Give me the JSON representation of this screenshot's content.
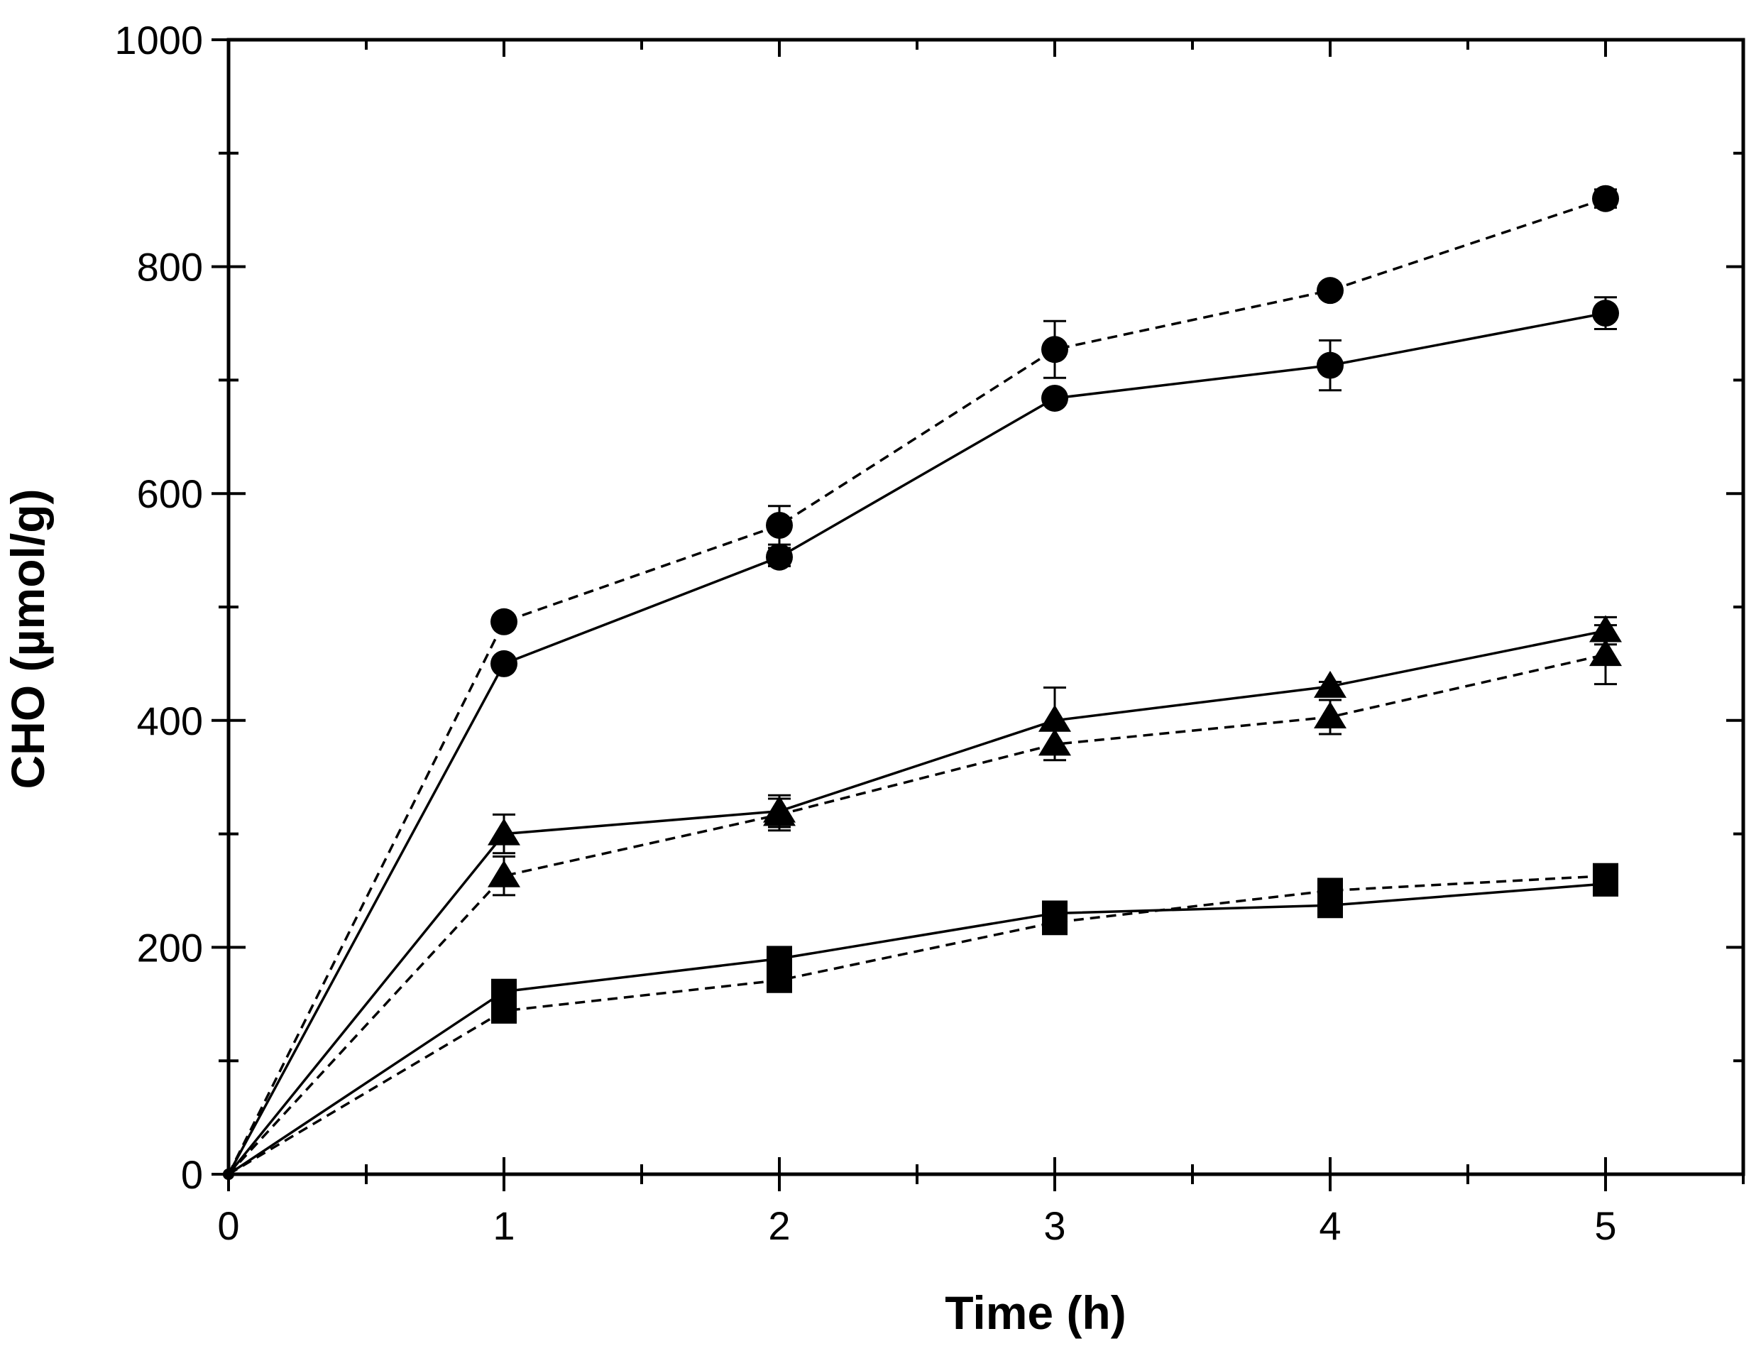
{
  "chart_data": {
    "type": "line",
    "title": "",
    "xlabel": "Time (h)",
    "ylabel": "CHO (µmol/g)",
    "xlim": [
      0,
      5.5
    ],
    "ylim": [
      0,
      1000
    ],
    "xticks": [
      0,
      1,
      2,
      3,
      4,
      5
    ],
    "yticks": [
      0,
      200,
      400,
      600,
      800,
      1000
    ],
    "grid": false,
    "legend": "none",
    "colors": {
      "ink": "#000000",
      "background": "#ffffff"
    },
    "series": [
      {
        "name": "circle-dashed",
        "marker": "circle",
        "linestyle": "dashed",
        "x": [
          0,
          1,
          2,
          3,
          4,
          5
        ],
        "y": [
          0,
          487,
          572,
          727,
          779,
          860
        ],
        "err": [
          0,
          5,
          17,
          25,
          6,
          8
        ]
      },
      {
        "name": "circle-solid",
        "marker": "circle",
        "linestyle": "solid",
        "x": [
          0,
          1,
          2,
          3,
          4,
          5
        ],
        "y": [
          0,
          450,
          544,
          684,
          713,
          759
        ],
        "err": [
          0,
          4,
          8,
          5,
          22,
          14
        ]
      },
      {
        "name": "triangle-solid",
        "marker": "triangle",
        "linestyle": "solid",
        "x": [
          0,
          1,
          2,
          3,
          4,
          5
        ],
        "y": [
          0,
          300,
          320,
          400,
          430,
          479
        ],
        "err": [
          0,
          17,
          14,
          29,
          4,
          12
        ]
      },
      {
        "name": "triangle-dashed",
        "marker": "triangle",
        "linestyle": "dashed",
        "x": [
          0,
          1,
          2,
          3,
          4,
          5
        ],
        "y": [
          0,
          263,
          317,
          379,
          403,
          458
        ],
        "err": [
          0,
          17,
          14,
          14,
          15,
          26
        ]
      },
      {
        "name": "square-solid",
        "marker": "square",
        "linestyle": "solid",
        "x": [
          0,
          1,
          2,
          3,
          4,
          5
        ],
        "y": [
          0,
          161,
          190,
          230,
          237,
          256
        ],
        "err": [
          0,
          4,
          4,
          4,
          4,
          4
        ]
      },
      {
        "name": "square-dashed",
        "marker": "square",
        "linestyle": "dashed",
        "x": [
          0,
          1,
          2,
          3,
          4,
          5
        ],
        "y": [
          0,
          144,
          171,
          222,
          250,
          263
        ],
        "err": [
          0,
          4,
          4,
          4,
          4,
          4
        ]
      }
    ]
  }
}
